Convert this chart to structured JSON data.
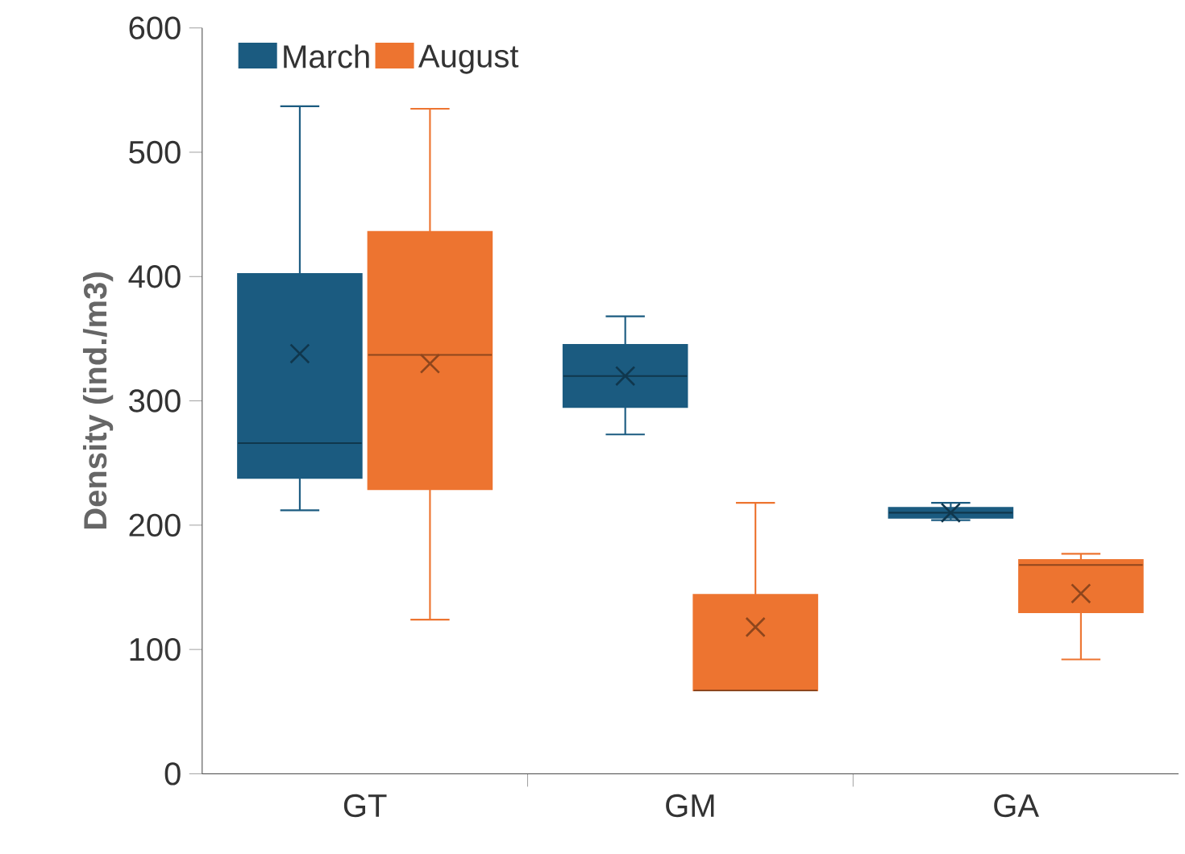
{
  "chart_data": {
    "type": "box",
    "ylabel": "Density (ind./m3)",
    "categories": [
      "GT",
      "GM",
      "GA"
    ],
    "ylim": [
      0,
      600
    ],
    "yticks": [
      0,
      100,
      200,
      300,
      400,
      500,
      600
    ],
    "legend": "top left",
    "grid": false,
    "series": [
      {
        "name": "March",
        "color": "#1b5b80",
        "boxes": [
          {
            "low": 212,
            "q1": 238,
            "median": 266,
            "q3": 402,
            "high": 537,
            "mean": 338
          },
          {
            "low": 273,
            "q1": 295,
            "median": 320,
            "q3": 345,
            "high": 368,
            "mean": 320
          },
          {
            "low": 204,
            "q1": 206,
            "median": 210,
            "q3": 214,
            "high": 218,
            "mean": 210
          }
        ]
      },
      {
        "name": "August",
        "color": "#ed7430",
        "boxes": [
          {
            "low": 124,
            "q1": 229,
            "median": 337,
            "q3": 436,
            "high": 535,
            "mean": 330
          },
          {
            "low": 67,
            "q1": 67,
            "median": 67,
            "q3": 144,
            "high": 218,
            "mean": 118
          },
          {
            "low": 92,
            "q1": 130,
            "median": 168,
            "q3": 172,
            "high": 177,
            "mean": 145
          }
        ]
      }
    ]
  }
}
